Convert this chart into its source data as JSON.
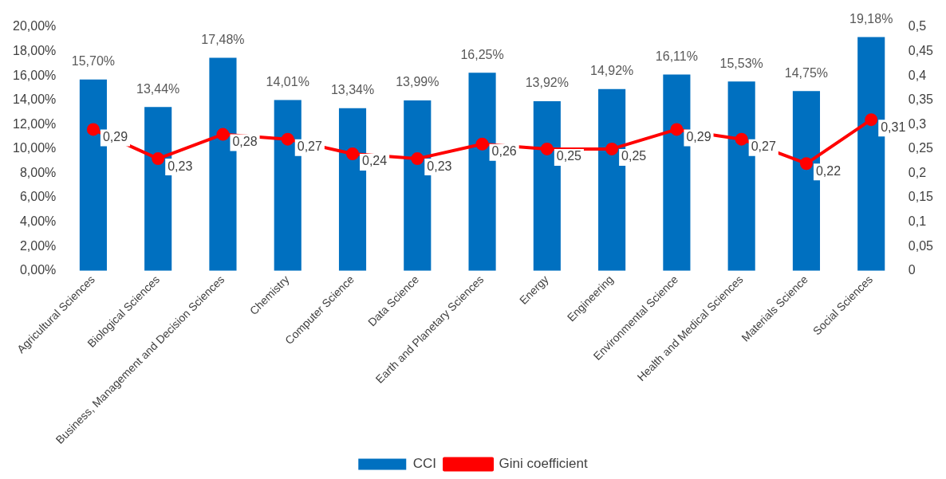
{
  "chart_data": {
    "type": "bar",
    "categories": [
      "Agricultural Sciences",
      "Biological Sciences",
      "Business, Management and Decision Sciences",
      "Chemistry",
      "Computer Science",
      "Data Science",
      "Earth and Planetary Sciences",
      "Energy",
      "Engineering",
      "Environmental Science",
      "Health and Medical Sciences",
      "Materials Science",
      "Social Sciences"
    ],
    "series": [
      {
        "name": "CCI",
        "color": "#0070c0",
        "values": [
          15.7,
          13.44,
          17.48,
          14.01,
          13.34,
          13.99,
          16.25,
          13.92,
          14.92,
          16.11,
          15.53,
          14.75,
          19.18
        ],
        "value_labels": [
          "15,70%",
          "13,44%",
          "17,48%",
          "14,01%",
          "13,34%",
          "13,99%",
          "16,25%",
          "13,92%",
          "14,92%",
          "16,11%",
          "15,53%",
          "14,75%",
          "19,18%"
        ]
      },
      {
        "name": "Gini coefficient",
        "type": "line",
        "axis": "y2",
        "color": "#ff0000",
        "marker": "circle",
        "values": [
          0.29,
          0.23,
          0.28,
          0.27,
          0.24,
          0.23,
          0.26,
          0.25,
          0.25,
          0.29,
          0.27,
          0.22,
          0.31
        ],
        "value_labels": [
          "0,29",
          "0,23",
          "0,28",
          "0,27",
          "0,24",
          "0,23",
          "0,26",
          "0,25",
          "0,25",
          "0,29",
          "0,27",
          "0,22",
          "0,31"
        ]
      }
    ],
    "ylim": [
      0,
      20
    ],
    "yticks": [
      {
        "value": 0,
        "label": "0,00%"
      },
      {
        "value": 2,
        "label": "2,00%"
      },
      {
        "value": 4,
        "label": "4,00%"
      },
      {
        "value": 6,
        "label": "6,00%"
      },
      {
        "value": 8,
        "label": "8,00%"
      },
      {
        "value": 10,
        "label": "10,00%"
      },
      {
        "value": 12,
        "label": "12,00%"
      },
      {
        "value": 14,
        "label": "14,00%"
      },
      {
        "value": 16,
        "label": "16,00%"
      },
      {
        "value": 18,
        "label": "18,00%"
      },
      {
        "value": 20,
        "label": "20,00%"
      }
    ],
    "y2lim": [
      0,
      0.5
    ],
    "y2ticks": [
      0,
      {
        "value": 0.05,
        "label": "0,05"
      },
      {
        "value": 0.1,
        "label": "0,1"
      },
      {
        "value": 0.15,
        "label": "0,15"
      },
      {
        "value": 0.2,
        "label": "0,2"
      },
      {
        "value": 0.25,
        "label": "0,25"
      },
      {
        "value": 0.3,
        "label": "0,3"
      },
      {
        "value": 0.35,
        "label": "0,35"
      },
      {
        "value": 0.4,
        "label": "0,4"
      },
      {
        "value": 0.45,
        "label": "0,45"
      },
      {
        "value": 0.5,
        "label": "0,5"
      }
    ],
    "grid": false,
    "legend": "bottom"
  }
}
